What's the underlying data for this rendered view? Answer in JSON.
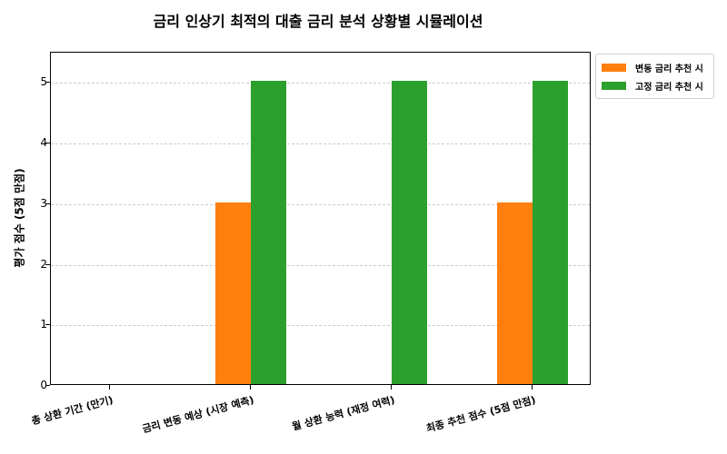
{
  "chart_data": {
    "type": "bar",
    "title": "금리 인상기 최적의 대출 금리 분석 상황별 시뮬레이션",
    "xlabel": "",
    "ylabel": "평가 점수 (5점 만점)",
    "ylim": [
      0,
      5.5
    ],
    "yticks": [
      0,
      1,
      2,
      3,
      4,
      5
    ],
    "grid": true,
    "legend_position": "outside upper right",
    "categories": [
      "총 상환 기간 (만기)",
      "금리 변동 예상 (시장 예측)",
      "월 상환 능력 (재정 여력)",
      "최종 추천 점수   (5점 만점)"
    ],
    "series": [
      {
        "name": "변동 금리 추천 시",
        "color": "#ff7f0e",
        "values": [
          0,
          3,
          0,
          3
        ]
      },
      {
        "name": "고정 금리 추천 시",
        "color": "#2ca02c",
        "values": [
          0,
          5,
          5,
          5
        ]
      }
    ]
  }
}
